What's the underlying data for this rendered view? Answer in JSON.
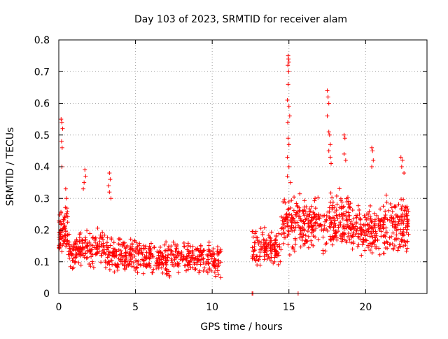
{
  "chart_data": {
    "type": "scatter",
    "title": "Day 103 of 2023, SRMTID for receiver alam",
    "xlabel": "GPS time / hours",
    "ylabel": "SRMTID / TECUs",
    "xlim": [
      0,
      24
    ],
    "ylim": [
      0,
      0.8
    ],
    "xticks": [
      0,
      5,
      10,
      15,
      20
    ],
    "xtick_labels": [
      "0",
      "5",
      "10",
      "15",
      "20"
    ],
    "yticks": [
      0,
      0.1,
      0.2,
      0.3,
      0.4,
      0.5,
      0.6,
      0.7,
      0.8
    ],
    "ytick_labels": [
      "0",
      "0.1",
      "0.2",
      "0.3",
      "0.4",
      "0.5",
      "0.6",
      "0.7",
      "0.8"
    ],
    "grid": true,
    "marker": "+",
    "marker_color": "#ff0000",
    "series": [
      {
        "name": "SRMTID",
        "clusters": [
          {
            "x_start": 0.0,
            "x_end": 0.6,
            "count": 70,
            "y_center": 0.2,
            "y_spread": 0.12
          },
          {
            "x_start": 0.6,
            "x_end": 3.0,
            "count": 160,
            "y_center": 0.14,
            "y_spread": 0.08
          },
          {
            "x_start": 3.0,
            "x_end": 5.5,
            "count": 160,
            "y_center": 0.12,
            "y_spread": 0.08
          },
          {
            "x_start": 5.5,
            "x_end": 8.0,
            "count": 160,
            "y_center": 0.11,
            "y_spread": 0.07
          },
          {
            "x_start": 8.0,
            "x_end": 10.6,
            "count": 160,
            "y_center": 0.11,
            "y_spread": 0.07
          },
          {
            "x_start": 12.6,
            "x_end": 14.5,
            "count": 130,
            "y_center": 0.14,
            "y_spread": 0.08
          },
          {
            "x_start": 14.5,
            "x_end": 16.5,
            "count": 160,
            "y_center": 0.22,
            "y_spread": 0.12
          },
          {
            "x_start": 16.5,
            "x_end": 19.0,
            "count": 180,
            "y_center": 0.22,
            "y_spread": 0.12
          },
          {
            "x_start": 19.0,
            "x_end": 21.0,
            "count": 150,
            "y_center": 0.2,
            "y_spread": 0.1
          },
          {
            "x_start": 21.0,
            "x_end": 22.8,
            "count": 150,
            "y_center": 0.22,
            "y_spread": 0.12
          }
        ],
        "points": [
          [
            0.15,
            0.55
          ],
          [
            0.2,
            0.54
          ],
          [
            0.25,
            0.52
          ],
          [
            0.18,
            0.48
          ],
          [
            0.22,
            0.46
          ],
          [
            0.2,
            0.4
          ],
          [
            0.45,
            0.33
          ],
          [
            0.5,
            0.3
          ],
          [
            1.7,
            0.39
          ],
          [
            1.75,
            0.37
          ],
          [
            1.65,
            0.35
          ],
          [
            1.6,
            0.33
          ],
          [
            3.3,
            0.38
          ],
          [
            3.35,
            0.36
          ],
          [
            3.25,
            0.34
          ],
          [
            3.3,
            0.32
          ],
          [
            3.4,
            0.3
          ],
          [
            12.6,
            0.0
          ],
          [
            12.65,
            0.0
          ],
          [
            14.95,
            0.75
          ],
          [
            14.97,
            0.74
          ],
          [
            15.0,
            0.73
          ],
          [
            14.93,
            0.72
          ],
          [
            14.98,
            0.7
          ],
          [
            14.95,
            0.66
          ],
          [
            14.9,
            0.61
          ],
          [
            15.0,
            0.59
          ],
          [
            15.05,
            0.56
          ],
          [
            14.92,
            0.54
          ],
          [
            14.95,
            0.49
          ],
          [
            15.0,
            0.47
          ],
          [
            14.9,
            0.43
          ],
          [
            15.0,
            0.4
          ],
          [
            14.9,
            0.37
          ],
          [
            15.1,
            0.35
          ],
          [
            15.6,
            0.0
          ],
          [
            17.5,
            0.64
          ],
          [
            17.55,
            0.62
          ],
          [
            17.6,
            0.6
          ],
          [
            17.5,
            0.56
          ],
          [
            17.6,
            0.51
          ],
          [
            17.65,
            0.5
          ],
          [
            17.7,
            0.47
          ],
          [
            17.6,
            0.45
          ],
          [
            17.7,
            0.43
          ],
          [
            17.75,
            0.41
          ],
          [
            18.6,
            0.5
          ],
          [
            18.65,
            0.49
          ],
          [
            18.6,
            0.44
          ],
          [
            18.7,
            0.42
          ],
          [
            20.4,
            0.46
          ],
          [
            20.45,
            0.45
          ],
          [
            20.5,
            0.42
          ],
          [
            20.4,
            0.4
          ],
          [
            22.3,
            0.43
          ],
          [
            22.4,
            0.42
          ],
          [
            22.35,
            0.4
          ],
          [
            22.5,
            0.38
          ]
        ]
      }
    ]
  }
}
